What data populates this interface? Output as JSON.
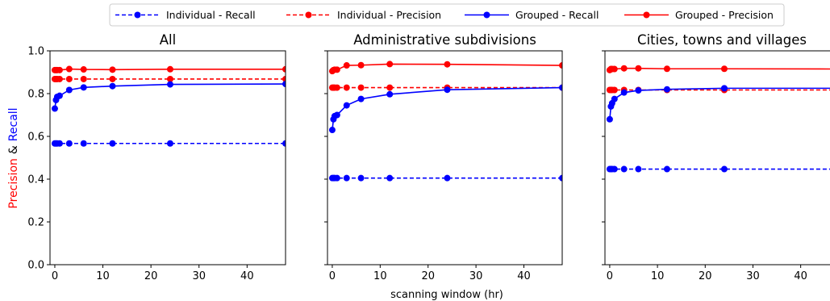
{
  "legend": {
    "entries": [
      {
        "label": "Individual - Recall",
        "color": "#0000ff",
        "dash": true
      },
      {
        "label": "Individual - Precision",
        "color": "#ff0000",
        "dash": true
      },
      {
        "label": "Grouped - Recall",
        "color": "#0000ff",
        "dash": false
      },
      {
        "label": "Grouped - Precision",
        "color": "#ff0000",
        "dash": false
      }
    ]
  },
  "ylabel": {
    "part1": "Precision",
    "part2": "&",
    "part3": "Recall",
    "color1": "#ff0000",
    "color3": "#0000ff"
  },
  "xlabel": "scanning window (hr)",
  "chart_data": [
    {
      "type": "line",
      "title": "All",
      "xlim": [
        -1,
        48
      ],
      "ylim": [
        0.0,
        1.0
      ],
      "xticks": [
        0,
        10,
        20,
        30,
        40
      ],
      "yticks": [
        0.0,
        0.2,
        0.4,
        0.6,
        0.8,
        1.0
      ],
      "x": [
        0,
        0.25,
        0.5,
        1,
        3,
        6,
        12,
        24,
        48
      ],
      "series": [
        {
          "name": "Individual - Recall",
          "values": [
            0.567,
            0.567,
            0.567,
            0.567,
            0.567,
            0.567,
            0.567,
            0.567,
            0.567
          ]
        },
        {
          "name": "Individual - Precision",
          "values": [
            0.868,
            0.868,
            0.868,
            0.868,
            0.868,
            0.868,
            0.868,
            0.868,
            0.868
          ]
        },
        {
          "name": "Grouped - Recall",
          "values": [
            0.73,
            0.77,
            0.785,
            0.79,
            0.817,
            0.829,
            0.835,
            0.843,
            0.845
          ]
        },
        {
          "name": "Grouped - Precision",
          "values": [
            0.91,
            0.91,
            0.91,
            0.91,
            0.915,
            0.913,
            0.912,
            0.914,
            0.914
          ]
        }
      ]
    },
    {
      "type": "line",
      "title": "Administrative subdivisions",
      "xlim": [
        -1,
        48
      ],
      "ylim": [
        0.0,
        1.0
      ],
      "xticks": [
        0,
        10,
        20,
        30,
        40
      ],
      "yticks": [
        0.0,
        0.2,
        0.4,
        0.6,
        0.8,
        1.0
      ],
      "x": [
        0,
        0.25,
        0.5,
        1,
        3,
        6,
        12,
        24,
        48
      ],
      "series": [
        {
          "name": "Individual - Recall",
          "values": [
            0.405,
            0.405,
            0.405,
            0.405,
            0.405,
            0.405,
            0.405,
            0.405,
            0.405
          ]
        },
        {
          "name": "Individual - Precision",
          "values": [
            0.828,
            0.828,
            0.828,
            0.828,
            0.828,
            0.828,
            0.828,
            0.828,
            0.828
          ]
        },
        {
          "name": "Grouped - Recall",
          "values": [
            0.63,
            0.68,
            0.695,
            0.7,
            0.745,
            0.775,
            0.797,
            0.818,
            0.828
          ]
        },
        {
          "name": "Grouped - Precision",
          "values": [
            0.905,
            0.91,
            0.912,
            0.912,
            0.932,
            0.933,
            0.938,
            0.937,
            0.932
          ]
        }
      ]
    },
    {
      "type": "line",
      "title": "Cities, towns and villages",
      "xlim": [
        -1,
        48
      ],
      "ylim": [
        0.0,
        1.0
      ],
      "xticks": [
        0,
        10,
        20,
        30,
        40
      ],
      "yticks": [
        0.0,
        0.2,
        0.4,
        0.6,
        0.8,
        1.0
      ],
      "x": [
        0,
        0.25,
        0.5,
        1,
        3,
        6,
        12,
        24,
        48
      ],
      "series": [
        {
          "name": "Individual - Recall",
          "values": [
            0.447,
            0.447,
            0.447,
            0.447,
            0.447,
            0.447,
            0.447,
            0.447,
            0.447
          ]
        },
        {
          "name": "Individual - Precision",
          "values": [
            0.817,
            0.817,
            0.817,
            0.817,
            0.817,
            0.817,
            0.817,
            0.817,
            0.817
          ]
        },
        {
          "name": "Grouped - Recall",
          "values": [
            0.68,
            0.74,
            0.755,
            0.775,
            0.805,
            0.815,
            0.82,
            0.825,
            0.825
          ]
        },
        {
          "name": "Grouped - Precision",
          "values": [
            0.91,
            0.915,
            0.915,
            0.915,
            0.918,
            0.918,
            0.916,
            0.916,
            0.915
          ]
        }
      ]
    }
  ]
}
